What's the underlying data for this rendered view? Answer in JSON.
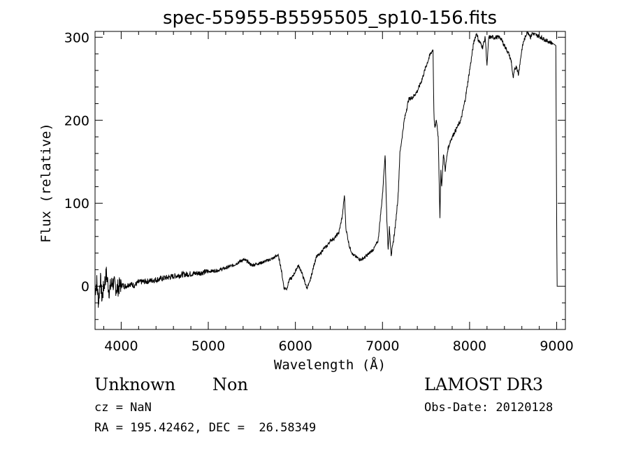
{
  "chart_data": {
    "type": "line",
    "title": "spec-55955-B5595505_sp10-156.fits",
    "xlabel": "Wavelength (Å)",
    "ylabel": "Flux (relative)",
    "xlim": [
      3700,
      9100
    ],
    "ylim": [
      -52,
      307
    ],
    "x_ticks": [
      4000,
      5000,
      6000,
      7000,
      8000,
      9000
    ],
    "y_ticks": [
      0,
      100,
      200,
      300
    ],
    "grid": false,
    "legend": "none",
    "line_color": "#000000",
    "series": [
      {
        "x": [
          3700,
          3720,
          3740,
          3760,
          3780,
          3800,
          3830,
          3860,
          3900,
          3950,
          4000,
          4050,
          4100,
          4150,
          4200,
          4300,
          4400,
          4500,
          4600,
          4700,
          4800,
          4900,
          5000,
          5100,
          5200,
          5300,
          5400,
          5450,
          5500,
          5550,
          5600,
          5650,
          5700,
          5750,
          5800,
          5830,
          5870,
          5900,
          5930,
          5960,
          6000,
          6030,
          6060,
          6100,
          6130,
          6160,
          6200,
          6240,
          6280,
          6320,
          6360,
          6400,
          6450,
          6500,
          6540,
          6563,
          6580,
          6620,
          6660,
          6700,
          6750,
          6800,
          6850,
          6900,
          6950,
          7000,
          7030,
          7050,
          7065,
          7080,
          7100,
          7120,
          7150,
          7180,
          7200,
          7250,
          7300,
          7350,
          7400,
          7450,
          7500,
          7550,
          7580,
          7590,
          7600,
          7620,
          7640,
          7660,
          7670,
          7680,
          7700,
          7720,
          7750,
          7780,
          7800,
          7850,
          7900,
          7950,
          8000,
          8050,
          8080,
          8100,
          8150,
          8180,
          8200,
          8220,
          8250,
          8300,
          8350,
          8400,
          8450,
          8480,
          8500,
          8520,
          8540,
          8560,
          8600,
          8620,
          8640,
          8660,
          8680,
          8700,
          8720,
          8750,
          8800,
          8850,
          8900,
          8950,
          8990,
          9000,
          9005,
          9010
        ],
        "y": [
          -5,
          5,
          -20,
          10,
          -15,
          0,
          15,
          -5,
          5,
          -3,
          2,
          0,
          3,
          1,
          5,
          6,
          8,
          10,
          12,
          14,
          15,
          16,
          18,
          19,
          22,
          26,
          32,
          30,
          25,
          27,
          28,
          30,
          32,
          34,
          38,
          25,
          -2,
          -3,
          8,
          10,
          18,
          25,
          20,
          8,
          -2,
          3,
          20,
          36,
          38,
          45,
          48,
          55,
          58,
          65,
          85,
          110,
          70,
          48,
          38,
          35,
          32,
          35,
          40,
          45,
          55,
          110,
          160,
          80,
          45,
          70,
          38,
          50,
          75,
          110,
          160,
          200,
          225,
          228,
          235,
          248,
          265,
          280,
          285,
          210,
          190,
          200,
          180,
          80,
          140,
          120,
          160,
          140,
          165,
          175,
          180,
          190,
          200,
          225,
          260,
          295,
          305,
          297,
          288,
          300,
          265,
          300,
          300,
          300,
          300,
          290,
          280,
          270,
          250,
          262,
          265,
          255,
          285,
          295,
          300,
          307,
          305,
          300,
          305,
          303,
          301,
          298,
          295,
          293,
          290,
          80,
          0,
          0
        ]
      }
    ]
  },
  "info": {
    "class_label": "Unknown",
    "subclass_label": "Non",
    "survey": "LAMOST DR3",
    "redshift": "cz = NaN",
    "obs_date": "Obs-Date: 20120128",
    "coords": "RA = 195.42462, DEC =  26.58349"
  }
}
